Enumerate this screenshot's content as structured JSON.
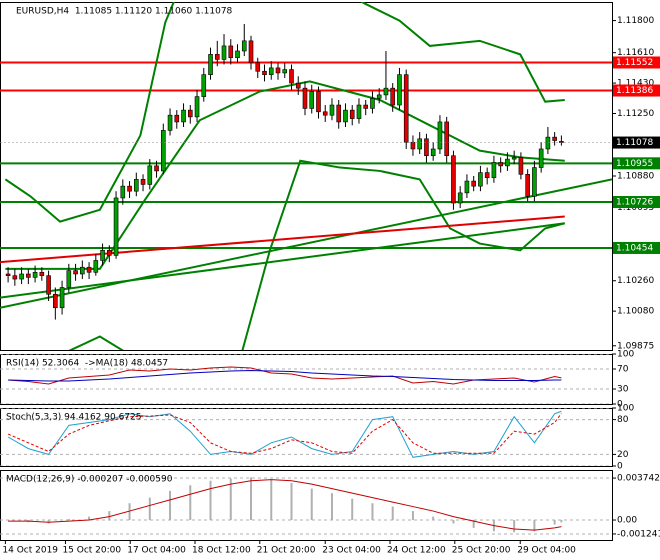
{
  "chart_data": [
    {
      "type": "candlestick",
      "title": "EURUSD,H4  1.11085 1.11120 1.11060 1.11078",
      "up_color": "#00a000",
      "down_color": "#e00000",
      "xlim": [
        -1.2,
        89.5
      ],
      "ylim": [
        1.0985,
        1.1191
      ],
      "yticks": [
        {
          "value": 1.118,
          "label": "1.11800"
        },
        {
          "value": 1.1161,
          "label": "1.11610"
        },
        {
          "value": 1.1143,
          "label": "1.11430"
        },
        {
          "value": 1.1125,
          "label": "1.11250"
        },
        {
          "value": 1.1088,
          "label": "1.10880"
        },
        1.10695,
        {
          "value": 1.1026,
          "label": "1.10260"
        },
        {
          "value": 1.1008,
          "label": "1.10080"
        },
        1.09875
      ],
      "levels": [
        {
          "value": 1.11552,
          "color": "#ff0000"
        },
        {
          "value": 1.11386,
          "color": "#ff0000"
        },
        {
          "value": 1.10955,
          "color": "#008000"
        },
        {
          "value": 1.10726,
          "color": "#008000"
        },
        {
          "value": 1.10454,
          "color": "#008000"
        }
      ],
      "current_price": 1.11078,
      "ohlc": [
        [
          1.103,
          1.1034,
          1.1025,
          1.1029
        ],
        [
          1.1029,
          1.1033,
          1.1023,
          1.1027
        ],
        [
          1.1027,
          1.1034,
          1.1024,
          1.103
        ],
        [
          1.103,
          1.1033,
          1.1024,
          1.1028
        ],
        [
          1.1028,
          1.1035,
          1.1025,
          1.1031
        ],
        [
          1.1031,
          1.1034,
          1.1026,
          1.1029
        ],
        [
          1.1029,
          1.1032,
          1.1014,
          1.1018
        ],
        [
          1.1018,
          1.1022,
          1.1003,
          1.101
        ],
        [
          1.101,
          1.1026,
          1.1006,
          1.1022
        ],
        [
          1.1022,
          1.1036,
          1.1019,
          1.1032
        ],
        [
          1.1032,
          1.1036,
          1.1026,
          1.103
        ],
        [
          1.103,
          1.1038,
          1.1027,
          1.1034
        ],
        [
          1.1034,
          1.1037,
          1.1027,
          1.1031
        ],
        [
          1.1031,
          1.1042,
          1.1029,
          1.1038
        ],
        [
          1.1038,
          1.1048,
          1.1035,
          1.1044
        ],
        [
          1.1044,
          1.1047,
          1.1037,
          1.1041
        ],
        [
          1.1041,
          1.1079,
          1.1039,
          1.1075
        ],
        [
          1.1075,
          1.1086,
          1.1071,
          1.1082
        ],
        [
          1.1082,
          1.1085,
          1.1075,
          1.1079
        ],
        [
          1.1079,
          1.109,
          1.1076,
          1.1086
        ],
        [
          1.1086,
          1.1089,
          1.1079,
          1.1083
        ],
        [
          1.1083,
          1.1098,
          1.108,
          1.1094
        ],
        [
          1.1094,
          1.1097,
          1.1087,
          1.1091
        ],
        [
          1.1091,
          1.1119,
          1.1089,
          1.1115
        ],
        [
          1.1115,
          1.1128,
          1.1112,
          1.1124
        ],
        [
          1.1124,
          1.1127,
          1.1116,
          1.112
        ],
        [
          1.112,
          1.1131,
          1.1117,
          1.1127
        ],
        [
          1.1127,
          1.113,
          1.1119,
          1.1123
        ],
        [
          1.1123,
          1.1139,
          1.112,
          1.1135
        ],
        [
          1.1135,
          1.1152,
          1.1132,
          1.1148
        ],
        [
          1.1148,
          1.1164,
          1.1145,
          1.116
        ],
        [
          1.116,
          1.1168,
          1.1153,
          1.1157
        ],
        [
          1.1157,
          1.1172,
          1.1154,
          1.1165
        ],
        [
          1.1165,
          1.1169,
          1.1154,
          1.1158
        ],
        [
          1.1158,
          1.1166,
          1.1155,
          1.1162
        ],
        [
          1.1162,
          1.1178,
          1.1159,
          1.1168
        ],
        [
          1.1168,
          1.1171,
          1.1151,
          1.1155
        ],
        [
          1.1155,
          1.1158,
          1.1146,
          1.115
        ],
        [
          1.115,
          1.1154,
          1.1144,
          1.1148
        ],
        [
          1.1148,
          1.1156,
          1.1145,
          1.1152
        ],
        [
          1.1152,
          1.1155,
          1.1145,
          1.1149
        ],
        [
          1.1149,
          1.1155,
          1.1146,
          1.1151
        ],
        [
          1.1151,
          1.1154,
          1.1139,
          1.1143
        ],
        [
          1.1143,
          1.1147,
          1.1136,
          1.114
        ],
        [
          1.114,
          1.1144,
          1.1124,
          1.1128
        ],
        [
          1.1128,
          1.1142,
          1.1125,
          1.1138
        ],
        [
          1.1138,
          1.1141,
          1.1122,
          1.1126
        ],
        [
          1.1126,
          1.113,
          1.112,
          1.1124
        ],
        [
          1.1124,
          1.1134,
          1.1121,
          1.113
        ],
        [
          1.113,
          1.1133,
          1.1116,
          1.112
        ],
        [
          1.112,
          1.1131,
          1.1117,
          1.1127
        ],
        [
          1.1127,
          1.113,
          1.1118,
          1.1122
        ],
        [
          1.1122,
          1.1134,
          1.1119,
          1.113
        ],
        [
          1.113,
          1.1133,
          1.1124,
          1.1128
        ],
        [
          1.1128,
          1.1138,
          1.1125,
          1.1134
        ],
        [
          1.1134,
          1.114,
          1.1131,
          1.1136
        ],
        [
          1.1136,
          1.1162,
          1.1133,
          1.114
        ],
        [
          1.114,
          1.1143,
          1.1126,
          1.113
        ],
        [
          1.113,
          1.1152,
          1.1127,
          1.1148
        ],
        [
          1.1148,
          1.1151,
          1.1104,
          1.1108
        ],
        [
          1.1108,
          1.1112,
          1.11,
          1.1104
        ],
        [
          1.1104,
          1.1114,
          1.1101,
          1.111
        ],
        [
          1.111,
          1.1113,
          1.1096,
          1.11
        ],
        [
          1.11,
          1.1108,
          1.1097,
          1.1104
        ],
        [
          1.1104,
          1.1124,
          1.1101,
          1.112
        ],
        [
          1.112,
          1.1123,
          1.1096,
          1.11
        ],
        [
          1.11,
          1.1103,
          1.1068,
          1.1072
        ],
        [
          1.1072,
          1.1082,
          1.1069,
          1.1078
        ],
        [
          1.1078,
          1.1089,
          1.1075,
          1.1085
        ],
        [
          1.1085,
          1.1088,
          1.1079,
          1.1082
        ],
        [
          1.1082,
          1.1094,
          1.1079,
          1.109
        ],
        [
          1.109,
          1.1093,
          1.1083,
          1.1087
        ],
        [
          1.1087,
          1.11,
          1.1084,
          1.1096
        ],
        [
          1.1096,
          1.1099,
          1.109,
          1.1094
        ],
        [
          1.1094,
          1.1102,
          1.1091,
          1.1098
        ],
        [
          1.1098,
          1.1103,
          1.1095,
          1.1099
        ],
        [
          1.1099,
          1.1102,
          1.1086,
          1.1089
        ],
        [
          1.1089,
          1.1092,
          1.1073,
          1.1076
        ],
        [
          1.1076,
          1.1097,
          1.1073,
          1.1093
        ],
        [
          1.1093,
          1.1108,
          1.109,
          1.1104
        ],
        [
          1.1104,
          1.1117,
          1.1101,
          1.1111
        ],
        [
          1.1111,
          1.1114,
          1.1106,
          1.1109
        ],
        [
          1.11085,
          1.1112,
          1.1106,
          1.11078
        ]
      ],
      "overlays": [
        {
          "color": "#008000",
          "x": [
            -0.4,
            3.3,
            7.7,
            13.6,
            19.6,
            23.3,
            25.5,
            40,
            52.9,
            58,
            62.5,
            69.9,
            75.9,
            79.6,
            82.5
          ],
          "values": [
            1.1086,
            1.1076,
            1.1061,
            1.1068,
            1.1112,
            1.1179,
            1.12,
            1.122,
            1.119,
            1.118,
            1.1165,
            1.1168,
            1.116,
            1.1132,
            1.1133
          ]
        },
        {
          "color": "#008000",
          "x": [
            -0.4,
            13.6,
            20.3,
            28.4,
            37.3,
            44.7,
            55.1,
            62.5,
            69.9,
            75.9,
            82.5
          ],
          "values": [
            1.1033,
            1.1033,
            1.1074,
            1.1121,
            1.1138,
            1.1144,
            1.1133,
            1.1118,
            1.1103,
            1.1099,
            1.1097
          ]
        },
        {
          "color": "#008000",
          "x": [
            7.7,
            13.6,
            18.1,
            26,
            34.4,
            38.8,
            43.3,
            49.2,
            55.1,
            61,
            65.5,
            69.9,
            75.9,
            79.6,
            82.5
          ],
          "values": [
            1.0982,
            1.0993,
            1.0982,
            1.096,
            1.098,
            1.1044,
            1.1097,
            1.1093,
            1.1091,
            1.1086,
            1.1057,
            1.1048,
            1.1044,
            1.1057,
            1.106
          ]
        },
        {
          "color": "#008000",
          "x": [
            -1.2,
            89.5
          ],
          "values": [
            1.101,
            1.1086
          ]
        },
        {
          "color": "#008000",
          "x": [
            -1.2,
            82.5
          ],
          "values": [
            1.1016,
            1.106
          ]
        },
        {
          "color": "#e00000",
          "x": [
            -1.2,
            82.5
          ],
          "values": [
            1.1037,
            1.1064
          ]
        }
      ]
    },
    {
      "type": "line",
      "title": "RSI(14) 52.3064  ->MA(18) 48.0457",
      "ylim": [
        0,
        100
      ],
      "yticks": [
        100,
        70,
        30,
        0
      ],
      "x": [
        0,
        3,
        6,
        9,
        12,
        15,
        18,
        21,
        24,
        27,
        30,
        33,
        36,
        39,
        42,
        45,
        48,
        51,
        54,
        57,
        60,
        63,
        66,
        69,
        72,
        75,
        78,
        81,
        82
      ],
      "series": [
        {
          "color": "#c00000",
          "values": [
            48,
            45,
            40,
            52,
            55,
            58,
            68,
            66,
            70,
            68,
            72,
            74,
            72,
            62,
            60,
            52,
            50,
            52,
            54,
            56,
            42,
            45,
            40,
            48,
            50,
            52,
            44,
            55,
            52.3064
          ]
        },
        {
          "color": "#0000c0",
          "values": [
            48,
            47,
            46,
            46,
            48,
            50,
            53,
            56,
            59,
            62,
            64,
            66,
            67,
            66,
            65,
            62,
            60,
            58,
            56,
            55,
            53,
            51,
            49,
            48,
            47,
            47,
            47,
            48,
            48.0457
          ]
        }
      ]
    },
    {
      "type": "line",
      "title": "Stoch(5,3,3) 94.4162 90.6725",
      "ylim": [
        0,
        100
      ],
      "yticks": [
        100,
        80,
        20,
        0
      ],
      "x": [
        0,
        3,
        6,
        9,
        12,
        15,
        18,
        21,
        24,
        27,
        30,
        33,
        36,
        39,
        42,
        45,
        48,
        51,
        54,
        57,
        60,
        63,
        66,
        69,
        72,
        75,
        78,
        81,
        82
      ],
      "series": [
        {
          "color": "#1fa0d0",
          "values": [
            50,
            30,
            20,
            70,
            75,
            80,
            90,
            85,
            90,
            60,
            20,
            25,
            20,
            40,
            50,
            30,
            20,
            25,
            80,
            85,
            15,
            20,
            25,
            20,
            25,
            85,
            40,
            90,
            94.4162
          ]
        },
        {
          "color": "#e00000",
          "dashed": true,
          "values": [
            55,
            40,
            25,
            55,
            70,
            78,
            85,
            86,
            88,
            75,
            40,
            25,
            22,
            30,
            45,
            40,
            25,
            22,
            60,
            80,
            40,
            22,
            22,
            22,
            22,
            60,
            55,
            75,
            90.6725
          ]
        }
      ]
    },
    {
      "type": "macd",
      "title": "MACD(12,26,9) -0.000207 -0.000590",
      "ylim": [
        -0.00178,
        0.00446
      ],
      "yticks": [
        0.003742,
        {
          "value": 0,
          "label": "0.00"
        },
        -0.001241
      ],
      "x": [
        0,
        3,
        6,
        9,
        12,
        15,
        18,
        21,
        24,
        27,
        30,
        33,
        36,
        39,
        42,
        45,
        48,
        51,
        54,
        57,
        60,
        63,
        66,
        69,
        72,
        75,
        78,
        81,
        82
      ],
      "series": [
        {
          "color": "#b0b0b0",
          "values": [
            0,
            -0.0002,
            -0.0003,
            0.0001,
            0.0003,
            0.0008,
            0.0015,
            0.002,
            0.0026,
            0.0031,
            0.0035,
            0.0037,
            0.0038,
            0.0036,
            0.0033,
            0.0028,
            0.0024,
            0.0019,
            0.0015,
            0.0012,
            0.0008,
            0.0003,
            -0.0003,
            -0.0007,
            -0.001,
            -0.0011,
            -0.001,
            -0.0004,
            -0.000207
          ]
        },
        {
          "color": "#c00000",
          "values": [
            -0.0001,
            -0.0001,
            -0.0002,
            -0.0001,
            0,
            0.0003,
            0.0008,
            0.0013,
            0.0018,
            0.0023,
            0.0028,
            0.0032,
            0.0035,
            0.0036,
            0.0035,
            0.0032,
            0.0028,
            0.0024,
            0.002,
            0.0016,
            0.0012,
            0.0008,
            0.0003,
            -0.0001,
            -0.0005,
            -0.0008,
            -0.0009,
            -0.0007,
            -0.00059
          ]
        }
      ],
      "x_ticks": [
        {
          "value": -0.4,
          "label": "14 Oct 2019"
        },
        {
          "value": 8.5,
          "label": "15 Oct 20:00"
        },
        {
          "value": 18.1,
          "label": "17 Oct 04:00"
        },
        {
          "value": 27.7,
          "label": "18 Oct 12:00"
        },
        {
          "value": 37.3,
          "label": "21 Oct 20:00"
        },
        {
          "value": 47,
          "label": "23 Oct 04:00"
        },
        {
          "value": 56.6,
          "label": "24 Oct 12:00"
        },
        {
          "value": 66.2,
          "label": "25 Oct 20:00"
        },
        {
          "value": 75.9,
          "label": "29 Oct 04:00"
        }
      ]
    }
  ]
}
